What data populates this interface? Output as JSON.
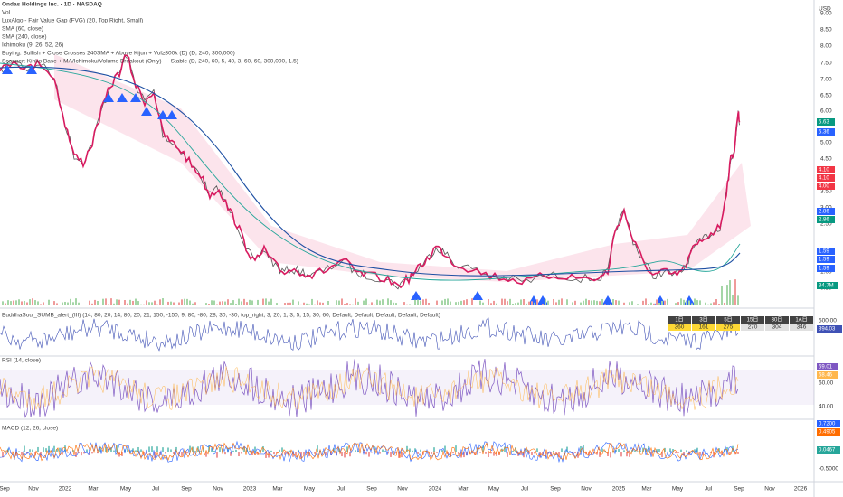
{
  "header": {
    "symbol_line": "Ondas Holdings Inc. · 1D · NASDAQ",
    "currency": "USD"
  },
  "main_legend": [
    "Vol",
    "LuxAlgo - Fair Value Gap (FVG) (20, Top Right, Small)",
    "SMA (60, close)",
    "SMA (240, close)",
    "Ichimoku (9, 26, 52, 26)",
    "Buying: Bullish + Close Crosses 240SMA + Above Kijun + Vol≥300k (D) (D, 240, 300,000)",
    "Scanner: Kinko Base + MA/Ichimoku/Volume Breakout (Only) — Stable (D, 240, 60, 5, 40, 3, 60, 60, 300,000, 1.5)"
  ],
  "price_axis": [
    "9.00",
    "8.50",
    "8.00",
    "7.50",
    "7.00",
    "6.50",
    "6.00",
    "5.00",
    "4.50",
    "3.50",
    "3.00",
    "2.50",
    "1.00",
    "0.50"
  ],
  "price_tags": [
    {
      "text": "5.63",
      "color": "#089981"
    },
    {
      "text": "5.36",
      "color": "#2962ff"
    },
    {
      "text": "4.10",
      "color": "#f23645"
    },
    {
      "text": "4.10",
      "color": "#f23645"
    },
    {
      "text": "4.00",
      "color": "#f23645"
    },
    {
      "text": "2.86",
      "color": "#2962ff"
    },
    {
      "text": "2.86",
      "color": "#089981"
    },
    {
      "text": "1.59",
      "color": "#2962ff"
    },
    {
      "text": "1.59",
      "color": "#2962ff"
    },
    {
      "text": "1.59",
      "color": "#2962ff"
    },
    {
      "text": "34.7M",
      "color": "#089981"
    }
  ],
  "buddha": {
    "title": "BuddhaSoul_SUMB_alert_(III) (14, 80, 20, 14, 80, 20, 21, 150, -150, 9, 80, -80, 28, 30, -30, top_right, 3, 20, 1, 3, 5, 15, 30, 60, Default, Default, Default, Default, Default)",
    "axis": [
      "500.00"
    ],
    "tag": "394.03",
    "table": {
      "headers": [
        "1日",
        "3日",
        "5日",
        "15日",
        "30日",
        "1A日"
      ],
      "values": [
        "360",
        "161",
        "275",
        "270",
        "304",
        "346"
      ]
    }
  },
  "rsi": {
    "title": "RSI (14, close)",
    "axis": [
      "60.00",
      "40.00"
    ],
    "tags": [
      "69.01",
      "68.46"
    ]
  },
  "macd": {
    "title": "MACD (12, 26, close)",
    "tags": [
      "0.7200",
      "0.4905",
      "0.0467"
    ],
    "axis": [
      "-0.5000"
    ]
  },
  "time_axis": [
    "Sep",
    "Nov",
    "2022",
    "Mar",
    "May",
    "Jul",
    "Sep",
    "Nov",
    "2023",
    "Mar",
    "May",
    "Jul",
    "Sep",
    "Nov",
    "2024",
    "Mar",
    "May",
    "Jul",
    "Sep",
    "Nov",
    "2025",
    "Mar",
    "May",
    "Jul",
    "Sep",
    "Nov",
    "2026"
  ]
}
